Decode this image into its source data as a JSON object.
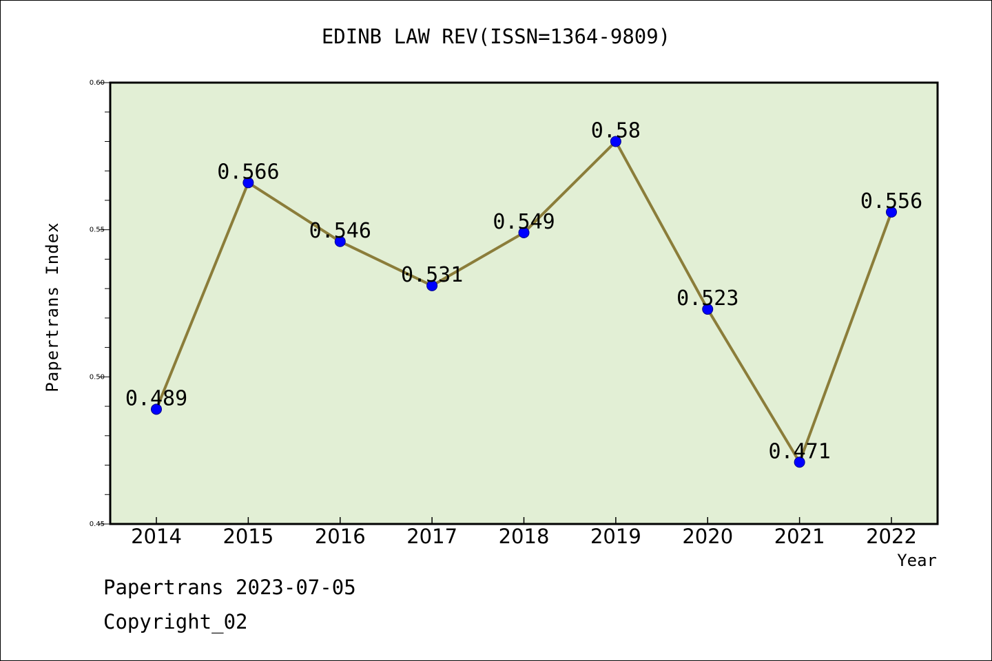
{
  "footer": {
    "line1": "Papertrans 2023-07-05",
    "line2": "Copyright_02"
  },
  "chart_data": {
    "type": "line",
    "title": "EDINB LAW REV(ISSN=1364-9809)",
    "xlabel": "Year",
    "ylabel": "Papertrans Index",
    "categories": [
      "2014",
      "2015",
      "2016",
      "2017",
      "2018",
      "2019",
      "2020",
      "2021",
      "2022"
    ],
    "values": [
      0.489,
      0.566,
      0.546,
      0.531,
      0.549,
      0.58,
      0.523,
      0.471,
      0.556
    ],
    "data_labels": [
      "0.489",
      "0.566",
      "0.546",
      "0.531",
      "0.549",
      "0.58",
      "0.523",
      "0.471",
      "0.556"
    ],
    "ylim": [
      0.45,
      0.6
    ],
    "yticks": [
      "0.45",
      "0.50",
      "0.55",
      "0.60"
    ],
    "grid": false,
    "colors": {
      "plot_background": "#e2efd5",
      "line": "#8b7d3a",
      "marker": "#0000ff"
    }
  }
}
